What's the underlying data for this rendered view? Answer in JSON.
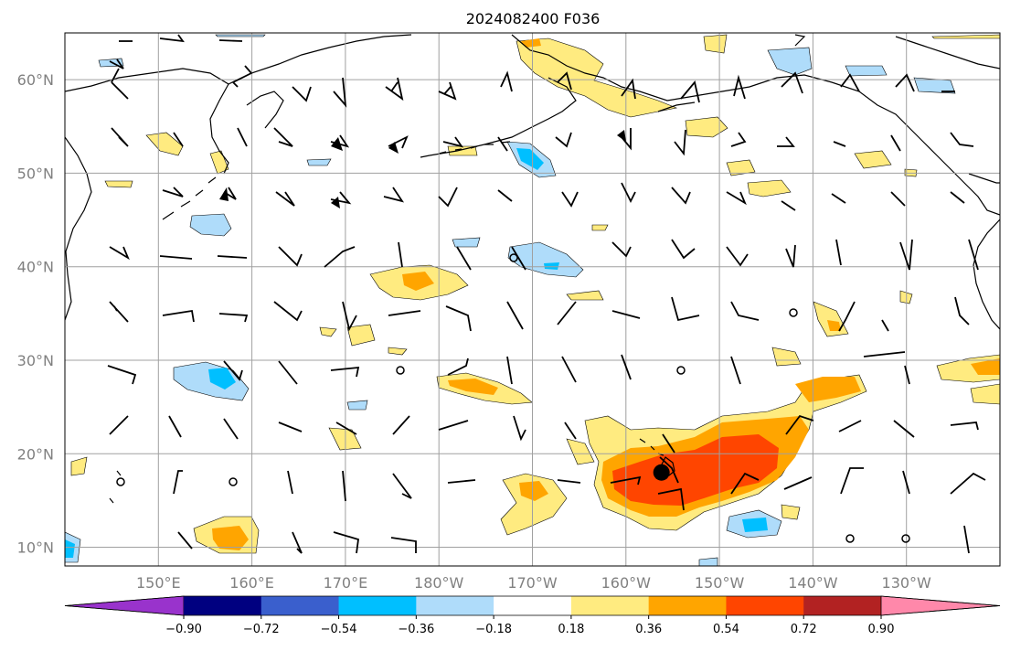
{
  "title": "2024082400 F036",
  "map": {
    "lon_range": [
      140,
      240
    ],
    "lat_range": [
      8,
      65
    ],
    "lat_labels": [
      "10°N",
      "20°N",
      "30°N",
      "40°N",
      "50°N",
      "60°N"
    ],
    "lon_labels": [
      "150°E",
      "160°E",
      "170°E",
      "180°W",
      "170°W",
      "160°W",
      "150°W",
      "140°W",
      "130°W"
    ],
    "grid": true,
    "marker": {
      "name": "storm-center",
      "lon": 203.8,
      "lat": 18.0
    }
  },
  "colorbar": {
    "tick_labels": [
      "−0.90",
      "−0.72",
      "−0.54",
      "−0.36",
      "−0.18",
      "0.18",
      "0.36",
      "0.54",
      "0.72",
      "0.90"
    ],
    "colors": [
      "#9933cc",
      "#000080",
      "#3a5fcd",
      "#00bfff",
      "#afdcfa",
      "#ffffff",
      "#ffeb80",
      "#ffa500",
      "#ff4500",
      "#b22222",
      "#ff88aa"
    ]
  }
}
